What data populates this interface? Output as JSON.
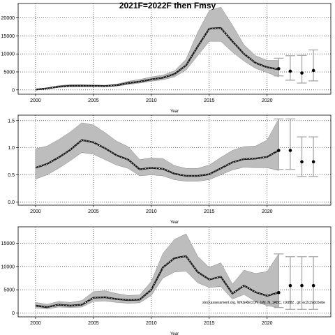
{
  "title": "2021F=2022F then Fmsy",
  "source_note": "stockassessment.org, WKGRECON_GM_N_1ABC, r16882 , git: ec2c2a0c6ebe",
  "colors": {
    "band": "#bdbdbd",
    "band_edge": "#8a8a8a",
    "line": "#1a1a1a",
    "dash": "#ffffff",
    "whisker": "#a8a8a8",
    "point": "#000000",
    "grid": "#000000"
  },
  "chart_data": [
    {
      "type": "line",
      "xlim": [
        1998.5,
        2025.5
      ],
      "ylim": [
        -1200,
        24000
      ],
      "xticks": [
        2000,
        2005,
        2010,
        2015,
        2020
      ],
      "yticks": [
        0,
        5000,
        10000,
        15000,
        20000
      ],
      "ytick_labels": [
        "0",
        "5000",
        "10000",
        "15000",
        "20000"
      ],
      "xlabel": "Year",
      "ylabel": "",
      "grid": true,
      "x": [
        2000,
        2001,
        2002,
        2003,
        2004,
        2005,
        2006,
        2007,
        2008,
        2009,
        2010,
        2011,
        2012,
        2013,
        2014,
        2015,
        2016,
        2017,
        2018,
        2019,
        2020,
        2021
      ],
      "estimate": [
        100,
        400,
        900,
        1100,
        1150,
        1100,
        1050,
        1300,
        1900,
        2300,
        2900,
        3400,
        4400,
        6800,
        12000,
        17000,
        17200,
        13500,
        10000,
        7500,
        6300,
        5700
      ],
      "lower": [
        50,
        300,
        700,
        850,
        900,
        900,
        850,
        1050,
        1500,
        1900,
        2400,
        2800,
        3600,
        5500,
        9500,
        13500,
        13500,
        10500,
        8000,
        6000,
        4800,
        3600
      ],
      "upper": [
        200,
        550,
        1200,
        1450,
        1450,
        1400,
        1300,
        1600,
        2400,
        2900,
        3600,
        4100,
        5300,
        8500,
        16000,
        22000,
        23000,
        18000,
        12500,
        9500,
        8200,
        8200
      ],
      "forecast": {
        "x": [
          2021,
          2022,
          2023,
          2024
        ],
        "median": [
          5900,
          5200,
          4700,
          5400
        ],
        "lower": [
          3900,
          2700,
          1900,
          2500
        ],
        "upper": [
          8800,
          9500,
          9600,
          11100
        ]
      }
    },
    {
      "type": "line",
      "xlim": [
        1998.5,
        2025.5
      ],
      "ylim": [
        -0.06,
        1.6
      ],
      "xticks": [
        2000,
        2005,
        2010,
        2015,
        2020
      ],
      "yticks": [
        0.0,
        0.5,
        1.0,
        1.5
      ],
      "ytick_labels": [
        "0.0",
        "0.5",
        "1.0",
        "1.5"
      ],
      "xlabel": "Year",
      "ylabel": "",
      "grid": true,
      "x": [
        2000,
        2001,
        2002,
        2003,
        2004,
        2005,
        2006,
        2007,
        2008,
        2009,
        2010,
        2011,
        2012,
        2013,
        2014,
        2015,
        2016,
        2017,
        2018,
        2019,
        2020,
        2021
      ],
      "estimate": [
        0.63,
        0.7,
        0.82,
        0.96,
        1.14,
        1.1,
        0.99,
        0.86,
        0.78,
        0.6,
        0.63,
        0.61,
        0.52,
        0.48,
        0.48,
        0.51,
        0.62,
        0.73,
        0.79,
        0.8,
        0.83,
        0.95
      ],
      "lower": [
        0.42,
        0.5,
        0.62,
        0.76,
        0.91,
        0.88,
        0.78,
        0.68,
        0.62,
        0.48,
        0.5,
        0.48,
        0.41,
        0.38,
        0.38,
        0.41,
        0.5,
        0.59,
        0.64,
        0.63,
        0.63,
        0.58
      ],
      "upper": [
        0.98,
        1.03,
        1.15,
        1.29,
        1.46,
        1.42,
        1.28,
        1.12,
        1.02,
        0.78,
        0.81,
        0.8,
        0.67,
        0.62,
        0.62,
        0.68,
        0.82,
        0.95,
        1.02,
        1.03,
        1.14,
        1.53
      ],
      "forecast": {
        "x": [
          2021,
          2022,
          2023,
          2024
        ],
        "median": [
          0.95,
          0.95,
          0.74,
          0.74
        ],
        "lower": [
          0.6,
          0.6,
          0.47,
          0.47
        ],
        "upper": [
          1.53,
          1.53,
          1.2,
          1.2
        ]
      }
    },
    {
      "type": "line",
      "xlim": [
        1998.5,
        2025.5
      ],
      "ylim": [
        -800,
        18500
      ],
      "xticks": [
        2000,
        2005,
        2010,
        2015,
        2020
      ],
      "yticks": [
        0,
        5000,
        10000,
        15000
      ],
      "ytick_labels": [
        "0",
        "5000",
        "10000",
        "15000"
      ],
      "xlabel": "Year",
      "ylabel": "",
      "grid": true,
      "x": [
        2000,
        2001,
        2002,
        2003,
        2004,
        2005,
        2006,
        2007,
        2008,
        2009,
        2010,
        2011,
        2012,
        2013,
        2014,
        2015,
        2016,
        2017,
        2018,
        2019,
        2020,
        2021
      ],
      "estimate": [
        1600,
        1300,
        1800,
        1600,
        1800,
        3300,
        3400,
        3000,
        2800,
        2900,
        5000,
        9800,
        11800,
        12200,
        8800,
        7200,
        7800,
        4200,
        5900,
        4500,
        3700,
        4400
      ],
      "lower": [
        1100,
        900,
        1300,
        1200,
        1300,
        2500,
        2600,
        2300,
        2100,
        2200,
        3800,
        7500,
        8800,
        9000,
        6500,
        5500,
        5700,
        3000,
        4000,
        2500,
        1600,
        1200
      ],
      "upper": [
        2300,
        1900,
        2500,
        2300,
        2700,
        4600,
        4800,
        4200,
        3800,
        3900,
        6800,
        12800,
        15800,
        17000,
        12200,
        9800,
        10800,
        6200,
        9200,
        8500,
        8900,
        12700
      ],
      "forecast": {
        "x": [
          2021,
          2022,
          2023,
          2024
        ],
        "median": [
          4400,
          5900,
          5900,
          5900
        ],
        "lower": [
          1200,
          800,
          800,
          800
        ],
        "upper": [
          12700,
          12100,
          12100,
          12100
        ]
      }
    }
  ]
}
